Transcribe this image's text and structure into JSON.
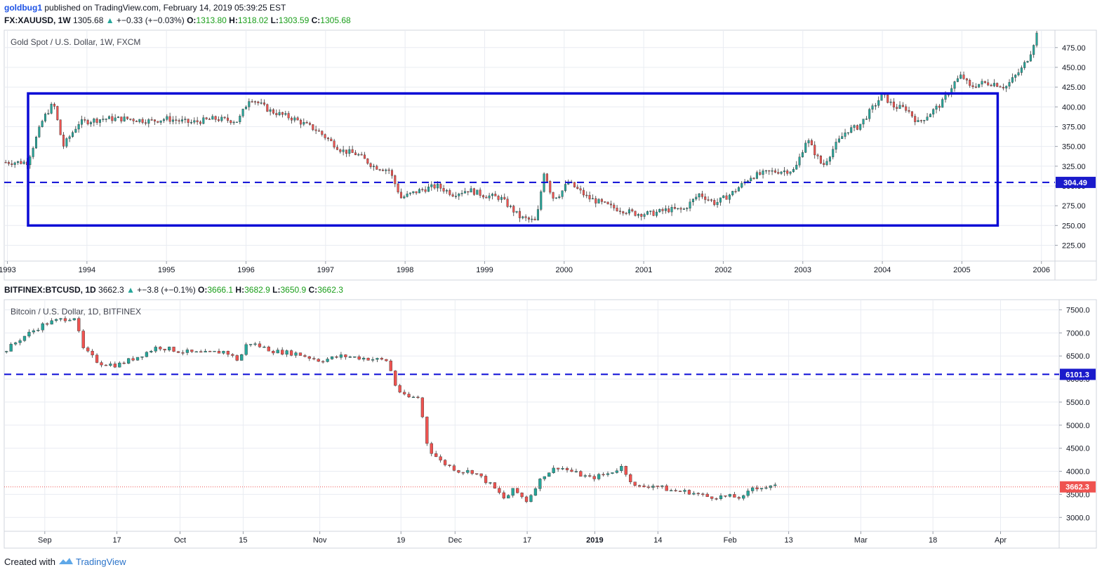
{
  "header": {
    "user": "goldbug1",
    "published": "published on TradingView.com, February 14, 2019 05:39:25 EST"
  },
  "gold": {
    "symbol": "FX:XAUUSD, 1W",
    "price": "1305.68",
    "change": "+−0.33 (+−0.03%)",
    "o_label": "O:",
    "o_value": "1313.80",
    "h_label": "H:",
    "h_value": "1318.02",
    "l_label": "L:",
    "l_value": "1303.59",
    "c_label": "C:",
    "c_value": "1305.68",
    "pane_title": "Gold Spot / U.S. Dollar, 1W, FXCM"
  },
  "btc": {
    "symbol": "BITFINEX:BTCUSD, 1D",
    "price": "3662.3",
    "change": "+−3.8 (+−0.1%)",
    "o_label": "O:",
    "o_value": "3666.1",
    "h_label": "H:",
    "h_value": "3682.9",
    "l_label": "L:",
    "l_value": "3650.9",
    "c_label": "C:",
    "c_value": "3662.3",
    "pane_title": "Bitcoin / U.S. Dollar, 1D, BITFINEX"
  },
  "footer": {
    "created_with": "Created with",
    "brand": "TradingView"
  },
  "colors": {
    "up": "#26a69a",
    "down": "#ef5350",
    "annotation": "#0b0bd6",
    "last_price": "#ef5350",
    "grid": "#e9ecf2"
  },
  "chart_data": [
    {
      "type": "candlestick",
      "title": "Gold Spot / U.S. Dollar, 1W, FXCM",
      "ylim": [
        205,
        497
      ],
      "y_ticks": [
        "225.00",
        "250.00",
        "275.00",
        "300.00",
        "325.00",
        "350.00",
        "375.00",
        "400.00",
        "425.00",
        "450.00",
        "475.00"
      ],
      "x_ticks": [
        "1993",
        "1994",
        "1995",
        "1996",
        "1997",
        "1998",
        "1999",
        "2000",
        "2001",
        "2002",
        "2003",
        "2004",
        "2005",
        "2006"
      ],
      "x_years": [
        1993,
        1994,
        1995,
        1996,
        1997,
        1998,
        1999,
        2000,
        2001,
        2002,
        2003,
        2004,
        2005,
        2006
      ],
      "xlim": [
        1992.96,
        2006.17
      ],
      "grid": true,
      "series_path": [
        [
          1992.96,
          330
        ],
        [
          1993.25,
          330
        ],
        [
          1993.45,
          385
        ],
        [
          1993.58,
          405
        ],
        [
          1993.7,
          350
        ],
        [
          1993.9,
          380
        ],
        [
          1994.2,
          385
        ],
        [
          1994.5,
          385
        ],
        [
          1994.8,
          382
        ],
        [
          1995.0,
          385
        ],
        [
          1995.3,
          380
        ],
        [
          1995.6,
          385
        ],
        [
          1995.9,
          382
        ],
        [
          1996.05,
          412
        ],
        [
          1996.3,
          395
        ],
        [
          1996.6,
          385
        ],
        [
          1996.9,
          370
        ],
        [
          1997.2,
          345
        ],
        [
          1997.4,
          340
        ],
        [
          1997.6,
          325
        ],
        [
          1997.8,
          320
        ],
        [
          1997.95,
          285
        ],
        [
          1998.2,
          295
        ],
        [
          1998.4,
          300
        ],
        [
          1998.6,
          290
        ],
        [
          1998.8,
          295
        ],
        [
          1999.0,
          288
        ],
        [
          1999.2,
          285
        ],
        [
          1999.45,
          260
        ],
        [
          1999.65,
          255
        ],
        [
          1999.75,
          320
        ],
        [
          1999.85,
          285
        ],
        [
          1999.95,
          290
        ],
        [
          2000.05,
          305
        ],
        [
          2000.3,
          285
        ],
        [
          2000.6,
          273
        ],
        [
          2000.9,
          265
        ],
        [
          2001.1,
          265
        ],
        [
          2001.3,
          270
        ],
        [
          2001.5,
          270
        ],
        [
          2001.7,
          290
        ],
        [
          2001.9,
          278
        ],
        [
          2002.1,
          290
        ],
        [
          2002.35,
          312
        ],
        [
          2002.6,
          318
        ],
        [
          2002.9,
          320
        ],
        [
          2003.05,
          360
        ],
        [
          2003.15,
          342
        ],
        [
          2003.25,
          325
        ],
        [
          2003.4,
          350
        ],
        [
          2003.55,
          370
        ],
        [
          2003.7,
          375
        ],
        [
          2003.85,
          395
        ],
        [
          2004.0,
          415
        ],
        [
          2004.15,
          400
        ],
        [
          2004.3,
          398
        ],
        [
          2004.45,
          380
        ],
        [
          2004.6,
          392
        ],
        [
          2004.75,
          405
        ],
        [
          2004.9,
          430
        ],
        [
          2005.0,
          440
        ],
        [
          2005.1,
          425
        ],
        [
          2005.25,
          430
        ],
        [
          2005.4,
          430
        ],
        [
          2005.55,
          425
        ],
        [
          2005.75,
          448
        ],
        [
          2005.85,
          465
        ],
        [
          2005.95,
          495
        ],
        [
          2006.0,
          500
        ]
      ],
      "annotations": {
        "rectangle": {
          "x0": 1993.26,
          "x1": 2005.45,
          "y0": 250,
          "y1": 417
        },
        "dashed_line": 304.49,
        "dashed_label": "304.49"
      }
    },
    {
      "type": "candlestick",
      "title": "Bitcoin / U.S. Dollar, 1D, BITFINEX",
      "ylim": [
        2700,
        7720
      ],
      "y_ticks": [
        "3000.0",
        "3500.0",
        "4000.0",
        "4500.0",
        "5000.0",
        "5500.0",
        "6000.0",
        "6500.0",
        "7000.0",
        "7500.0"
      ],
      "x_ticks": [
        "Sep",
        "17",
        "Oct",
        "15",
        "Nov",
        "19",
        "Dec",
        "17",
        "2019",
        "14",
        "Feb",
        "13",
        "Mar",
        "18",
        "Apr"
      ],
      "x_days": [
        0,
        16,
        30,
        44,
        61,
        79,
        91,
        107,
        122,
        136,
        152,
        165,
        181,
        197,
        212
      ],
      "xlim": [
        -9,
        225
      ],
      "grid": true,
      "series_path": [
        [
          -9,
          6600
        ],
        [
          -5,
          6900
        ],
        [
          0,
          7200
        ],
        [
          4,
          7300
        ],
        [
          7,
          7350
        ],
        [
          8,
          6700
        ],
        [
          12,
          6350
        ],
        [
          16,
          6300
        ],
        [
          21,
          6500
        ],
        [
          25,
          6700
        ],
        [
          30,
          6600
        ],
        [
          35,
          6550
        ],
        [
          40,
          6600
        ],
        [
          43,
          6400
        ],
        [
          45,
          6800
        ],
        [
          51,
          6600
        ],
        [
          56,
          6550
        ],
        [
          61,
          6400
        ],
        [
          66,
          6500
        ],
        [
          71,
          6450
        ],
        [
          76,
          6400
        ],
        [
          78,
          5800
        ],
        [
          80,
          5600
        ],
        [
          83,
          5600
        ],
        [
          85,
          4500
        ],
        [
          88,
          4200
        ],
        [
          92,
          4000
        ],
        [
          95,
          4000
        ],
        [
          99,
          3700
        ],
        [
          102,
          3400
        ],
        [
          104,
          3600
        ],
        [
          107,
          3350
        ],
        [
          109,
          3700
        ],
        [
          111,
          3950
        ],
        [
          114,
          4100
        ],
        [
          118,
          3950
        ],
        [
          121,
          3850
        ],
        [
          125,
          3950
        ],
        [
          128,
          4100
        ],
        [
          131,
          3650
        ],
        [
          135,
          3700
        ],
        [
          139,
          3580
        ],
        [
          143,
          3550
        ],
        [
          147,
          3450
        ],
        [
          152,
          3450
        ],
        [
          155,
          3430
        ],
        [
          157,
          3650
        ],
        [
          162,
          3662
        ]
      ],
      "last_price": 3662.3,
      "last_label": "3662.3",
      "annotations": {
        "dashed_line": 6101.3,
        "dashed_label": "6101.3"
      }
    }
  ]
}
